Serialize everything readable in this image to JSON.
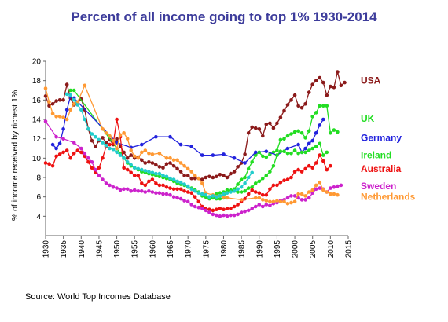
{
  "chart_data": {
    "type": "line",
    "title": "Percent of all income going to top 1%  1930-2014",
    "xlabel": "",
    "ylabel": "% of income received by richest 1%",
    "xlim": [
      1930,
      2015
    ],
    "ylim": [
      2,
      20
    ],
    "x_ticks": [
      "1930",
      "1935",
      "1940",
      "1945",
      "1950",
      "1955",
      "1960",
      "1965",
      "1970",
      "1975",
      "1980",
      "1985",
      "1990",
      "1995",
      "2000",
      "2005",
      "2010",
      "2015"
    ],
    "y_ticks": [
      "4",
      "6",
      "8",
      "10",
      "12",
      "14",
      "16",
      "18",
      "20"
    ],
    "grid": false,
    "legend_placement": "right",
    "series": [
      {
        "name": "USA",
        "color": "#8b1a1a",
        "x": [
          1930,
          1931,
          1932,
          1933,
          1934,
          1935,
          1936,
          1937,
          1938,
          1939,
          1940,
          1941,
          1942,
          1943,
          1944,
          1945,
          1946,
          1947,
          1948,
          1949,
          1950,
          1951,
          1952,
          1953,
          1954,
          1955,
          1956,
          1957,
          1958,
          1959,
          1960,
          1961,
          1962,
          1963,
          1964,
          1965,
          1966,
          1967,
          1968,
          1969,
          1970,
          1971,
          1972,
          1973,
          1974,
          1975,
          1976,
          1977,
          1978,
          1979,
          1980,
          1981,
          1982,
          1983,
          1984,
          1985,
          1986,
          1987,
          1988,
          1989,
          1990,
          1991,
          1992,
          1993,
          1994,
          1995,
          1996,
          1997,
          1998,
          1999,
          2000,
          2001,
          2002,
          2003,
          2004,
          2005,
          2006,
          2007,
          2008,
          2009,
          2010,
          2011,
          2012,
          2013,
          2014
        ],
        "y": [
          16.4,
          15.4,
          15.6,
          15.9,
          16.0,
          16.0,
          17.6,
          16.2,
          15.5,
          15.7,
          16.1,
          15.0,
          13.0,
          11.8,
          11.2,
          11.8,
          12.1,
          11.6,
          11.9,
          11.4,
          12.0,
          11.2,
          10.6,
          10.0,
          10.3,
          10.0,
          10.1,
          9.8,
          9.5,
          9.6,
          9.5,
          9.3,
          9.1,
          9.0,
          9.4,
          9.5,
          9.2,
          8.9,
          8.6,
          8.2,
          8.2,
          7.9,
          7.9,
          7.9,
          7.8,
          8.0,
          8.1,
          8.0,
          8.1,
          8.3,
          8.2,
          8.0,
          8.4,
          8.6,
          9.1,
          9.5,
          10.4,
          12.6,
          13.2,
          13.1,
          13.0,
          12.3,
          13.5,
          13.6,
          13.1,
          13.6,
          14.2,
          14.9,
          15.5,
          16.0,
          16.5,
          15.4,
          15.2,
          15.6,
          16.8,
          17.6,
          18.0,
          18.3,
          17.8,
          16.5,
          17.4,
          17.3,
          18.9,
          17.5,
          17.8
        ]
      },
      {
        "name": "UK",
        "color": "#22dd22",
        "x": [
          1937,
          1938,
          1949,
          1950,
          1951,
          1952,
          1953,
          1954,
          1955,
          1956,
          1957,
          1958,
          1959,
          1960,
          1961,
          1962,
          1963,
          1964,
          1965,
          1966,
          1967,
          1968,
          1969,
          1970,
          1971,
          1972,
          1973,
          1974,
          1975,
          1976,
          1977,
          1978,
          1979,
          1980,
          1981,
          1982,
          1983,
          1984,
          1985,
          1986,
          1987,
          1988,
          1989,
          1990,
          1991,
          1992,
          1993,
          1994,
          1995,
          1996,
          1997,
          1998,
          1999,
          2000,
          2001,
          2002,
          2003,
          2004,
          2005,
          2006,
          2007,
          2008,
          2009,
          2010,
          2011,
          2012
        ],
        "y": [
          17.0,
          17.0,
          11.5,
          11.0,
          10.5,
          10.0,
          9.5,
          9.2,
          9.0,
          8.8,
          8.6,
          8.5,
          8.4,
          8.3,
          8.2,
          8.1,
          8.0,
          7.9,
          7.8,
          7.6,
          7.4,
          7.3,
          7.2,
          7.0,
          6.9,
          6.7,
          6.5,
          6.1,
          6.0,
          6.0,
          5.9,
          5.8,
          5.8,
          5.9,
          6.7,
          6.6,
          6.8,
          7.3,
          7.8,
          8.0,
          8.9,
          9.6,
          10.3,
          10.6,
          10.2,
          10.1,
          10.4,
          10.6,
          10.8,
          11.9,
          12.0,
          12.3,
          12.5,
          12.7,
          12.8,
          12.6,
          12.1,
          12.8,
          14.3,
          14.7,
          15.4,
          15.4,
          15.4,
          12.6,
          12.9,
          12.7
        ]
      },
      {
        "name": "Germany",
        "color": "#2222dd",
        "x": [
          1932,
          1933,
          1934,
          1935,
          1936,
          1937,
          1938,
          1950,
          1954,
          1957,
          1961,
          1965,
          1968,
          1971,
          1974,
          1977,
          1980,
          1983,
          1986,
          1989,
          1992,
          1995,
          1998,
          2001,
          2002,
          2003,
          2004,
          2005,
          2006,
          2007,
          2008
        ],
        "y": [
          11.4,
          11.0,
          11.5,
          13.0,
          15.0,
          16.4,
          16.2,
          11.6,
          11.1,
          11.4,
          12.2,
          12.2,
          11.4,
          11.2,
          10.3,
          10.3,
          10.4,
          10.0,
          9.5,
          10.6,
          10.7,
          10.3,
          11.0,
          11.4,
          10.6,
          11.0,
          11.5,
          11.8,
          12.6,
          13.4,
          14.0
        ]
      },
      {
        "name": "Ireland",
        "color": "#22dd22",
        "x": [
          1975,
          1976,
          1977,
          1978,
          1979,
          1980,
          1981,
          1982,
          1983,
          1984,
          1985,
          1986,
          1987,
          1988,
          1989,
          1990,
          1991,
          1992,
          1993,
          1994,
          1995,
          1996,
          1997,
          1998,
          1999,
          2000,
          2001,
          2002,
          2003,
          2004,
          2005,
          2006,
          2007,
          2008,
          2009
        ],
        "y": [
          6.0,
          5.8,
          6.1,
          6.3,
          6.4,
          6.5,
          6.6,
          6.7,
          6.6,
          6.5,
          6.5,
          6.6,
          6.9,
          7.0,
          7.4,
          7.6,
          7.9,
          8.2,
          8.6,
          9.2,
          10.3,
          10.7,
          10.7,
          10.5,
          10.5,
          10.8,
          10.5,
          10.6,
          10.6,
          10.8,
          11.0,
          11.2,
          11.5,
          10.3,
          10.6
        ]
      },
      {
        "name": "Australia",
        "color": "#ee1111",
        "x": [
          1930,
          1931,
          1932,
          1933,
          1934,
          1935,
          1936,
          1937,
          1938,
          1939,
          1940,
          1941,
          1942,
          1943,
          1944,
          1945,
          1946,
          1947,
          1948,
          1949,
          1950,
          1951,
          1952,
          1953,
          1954,
          1955,
          1956,
          1957,
          1958,
          1959,
          1960,
          1961,
          1962,
          1963,
          1964,
          1965,
          1966,
          1967,
          1968,
          1969,
          1970,
          1971,
          1972,
          1973,
          1974,
          1975,
          1976,
          1977,
          1978,
          1979,
          1980,
          1981,
          1982,
          1983,
          1984,
          1985,
          1986,
          1987,
          1988,
          1989,
          1990,
          1991,
          1992,
          1993,
          1994,
          1995,
          1996,
          1997,
          1998,
          1999,
          2000,
          2001,
          2002,
          2003,
          2004,
          2005,
          2006,
          2007,
          2008,
          2009,
          2010
        ],
        "y": [
          9.5,
          9.4,
          9.2,
          10.2,
          10.4,
          10.6,
          10.8,
          10.0,
          10.5,
          10.8,
          10.6,
          10.2,
          9.6,
          9.0,
          8.5,
          9.0,
          10.0,
          11.2,
          11.4,
          11.5,
          14.0,
          12.2,
          9.0,
          8.8,
          8.5,
          8.2,
          8.2,
          7.4,
          7.2,
          7.6,
          7.8,
          7.4,
          7.2,
          7.2,
          7.0,
          6.9,
          6.8,
          6.8,
          6.8,
          6.6,
          6.5,
          6.4,
          6.0,
          5.5,
          5.0,
          4.8,
          4.7,
          4.6,
          4.7,
          4.8,
          4.7,
          4.8,
          4.8,
          5.0,
          5.2,
          5.5,
          5.8,
          6.3,
          6.7,
          6.5,
          6.4,
          6.2,
          6.2,
          6.8,
          7.2,
          7.2,
          7.5,
          7.7,
          7.8,
          8.0,
          8.6,
          8.8,
          8.6,
          8.9,
          9.2,
          9.0,
          9.5,
          10.3,
          9.7,
          8.8,
          9.2
        ]
      },
      {
        "name": "Sweden",
        "color": "#cc22cc",
        "x": [
          1930,
          1933,
          1935,
          1938,
          1940,
          1941,
          1942,
          1943,
          1944,
          1945,
          1946,
          1947,
          1948,
          1949,
          1950,
          1951,
          1952,
          1953,
          1954,
          1955,
          1956,
          1957,
          1958,
          1959,
          1960,
          1961,
          1962,
          1963,
          1964,
          1965,
          1966,
          1967,
          1968,
          1969,
          1970,
          1971,
          1972,
          1973,
          1974,
          1975,
          1976,
          1977,
          1978,
          1979,
          1980,
          1981,
          1982,
          1983,
          1984,
          1985,
          1986,
          1987,
          1988,
          1989,
          1990,
          1991,
          1992,
          1993,
          1994,
          1995,
          1996,
          1997,
          1998,
          1999,
          2000,
          2001,
          2002,
          2003,
          2004,
          2005,
          2006,
          2007,
          2008,
          2009,
          2010,
          2011,
          2012,
          2013
        ],
        "y": [
          13.8,
          12.2,
          12.0,
          11.6,
          11.0,
          10.5,
          10.0,
          9.6,
          8.8,
          8.2,
          7.8,
          7.4,
          7.2,
          7.0,
          6.9,
          6.7,
          6.8,
          6.8,
          6.6,
          6.7,
          6.6,
          6.6,
          6.5,
          6.6,
          6.5,
          6.4,
          6.4,
          6.3,
          6.3,
          6.2,
          6.0,
          5.9,
          5.8,
          5.6,
          5.5,
          5.2,
          5.0,
          4.9,
          4.8,
          4.6,
          4.4,
          4.2,
          4.1,
          4.0,
          4.1,
          4.0,
          4.1,
          4.1,
          4.2,
          4.4,
          4.5,
          4.6,
          4.8,
          5.0,
          5.2,
          5.0,
          5.2,
          5.1,
          5.3,
          5.4,
          5.6,
          5.7,
          5.9,
          6.1,
          6.1,
          5.9,
          5.7,
          5.7,
          5.9,
          6.4,
          6.8,
          6.9,
          6.8,
          6.5,
          6.9,
          7.0,
          7.1,
          7.2
        ]
      },
      {
        "name": "Netherlands",
        "color": "#ff9933",
        "x": [
          1930,
          1931,
          1932,
          1933,
          1934,
          1935,
          1936,
          1937,
          1938,
          1939,
          1941,
          1946,
          1947,
          1948,
          1949,
          1950,
          1951,
          1952,
          1953,
          1954,
          1955,
          1956,
          1957,
          1958,
          1959,
          1960,
          1962,
          1964,
          1965,
          1966,
          1967,
          1968,
          1969,
          1970,
          1971,
          1972,
          1973,
          1974,
          1975,
          1977,
          1979,
          1980,
          1981,
          1985,
          1989,
          1990,
          1991,
          1992,
          1993,
          1994,
          1995,
          1996,
          1997,
          1998,
          1999,
          2000,
          2001,
          2002,
          2003,
          2004,
          2005,
          2006,
          2007,
          2008,
          2009,
          2010,
          2011,
          2012
        ],
        "y": [
          17.2,
          15.8,
          14.6,
          14.3,
          14.3,
          14.2,
          14.0,
          15.0,
          15.6,
          15.8,
          17.5,
          13.0,
          12.6,
          12.3,
          11.8,
          11.0,
          12.4,
          12.6,
          12.0,
          10.8,
          10.2,
          10.0,
          10.6,
          10.8,
          10.5,
          10.4,
          10.5,
          10.0,
          10.0,
          9.8,
          9.8,
          9.5,
          9.2,
          8.9,
          8.6,
          8.2,
          7.9,
          7.4,
          6.4,
          6.2,
          6.1,
          6.0,
          5.9,
          5.7,
          5.9,
          5.9,
          5.7,
          5.6,
          5.5,
          5.5,
          5.6,
          5.5,
          5.5,
          5.3,
          5.4,
          5.5,
          6.3,
          6.3,
          6.1,
          6.5,
          6.7,
          7.2,
          7.5,
          6.7,
          6.5,
          6.3,
          6.3,
          6.2
        ]
      },
      {
        "name": "",
        "color": "#22cccc",
        "x": [
          1936,
          1937,
          1938,
          1939,
          1940,
          1941,
          1942,
          1943,
          1944,
          1945,
          1946,
          1947,
          1948,
          1949,
          1950,
          1951,
          1952,
          1953,
          1954,
          1955,
          1956,
          1957,
          1958,
          1959,
          1960,
          1961,
          1962,
          1963,
          1964,
          1965,
          1966,
          1967,
          1968,
          1969,
          1970,
          1971,
          1972,
          1973,
          1974,
          1975,
          1976,
          1977,
          1978,
          1979,
          1980,
          1981,
          1982,
          1983,
          1984,
          1985,
          1986,
          1987,
          1988
        ],
        "y": [
          16.6,
          16.5,
          16.0,
          15.5,
          15.0,
          14.0,
          13.0,
          12.5,
          12.2,
          11.9,
          11.6,
          11.3,
          11.0,
          10.9,
          10.6,
          10.3,
          10.0,
          9.6,
          9.3,
          9.0,
          8.9,
          8.8,
          8.7,
          8.6,
          8.5,
          8.4,
          8.4,
          8.2,
          8.1,
          7.9,
          7.8,
          7.6,
          7.5,
          7.3,
          7.1,
          6.8,
          6.6,
          6.4,
          6.3,
          6.2,
          6.0,
          6.1,
          6.0,
          6.1,
          6.3,
          6.4,
          6.5,
          6.6,
          6.8,
          7.0,
          7.4,
          8.0,
          8.5
        ]
      }
    ],
    "legend": [
      {
        "label": "USA",
        "color": "#8b1a1a",
        "y": 18
      },
      {
        "label": "UK",
        "color": "#22dd22",
        "y": 14.1
      },
      {
        "label": "Germany",
        "color": "#2222dd",
        "y": 12.1
      },
      {
        "label": "Ireland",
        "color": "#22dd22",
        "y": 10.3
      },
      {
        "label": "Australia",
        "color": "#ee1111",
        "y": 8.9
      },
      {
        "label": "Sweden",
        "color": "#cc22cc",
        "y": 7.1
      },
      {
        "label": "Netherlands",
        "color": "#ff9933",
        "y": 6.0
      }
    ]
  },
  "source_text": "Source:  World Top Incomes Database"
}
